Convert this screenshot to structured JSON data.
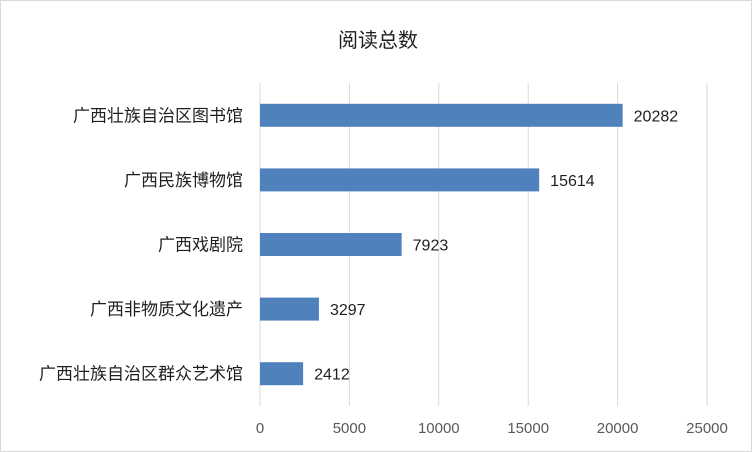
{
  "chart_data": {
    "type": "bar",
    "orientation": "horizontal",
    "title": "阅读总数",
    "categories": [
      "广西壮族自治区图书馆",
      "广西民族博物馆",
      "广西戏剧院",
      "广西非物质文化遗产",
      "广西壮族自治区群众艺术馆"
    ],
    "values": [
      20282,
      15614,
      7923,
      3297,
      2412
    ],
    "xlim": [
      0,
      25000
    ],
    "ticks": [
      0,
      5000,
      10000,
      15000,
      20000,
      25000
    ],
    "tick_labels": [
      "0",
      "5000",
      "10000",
      "15000",
      "20000",
      "25000"
    ],
    "grid": true,
    "legend": "none",
    "bar_color": "#4f81bd"
  }
}
